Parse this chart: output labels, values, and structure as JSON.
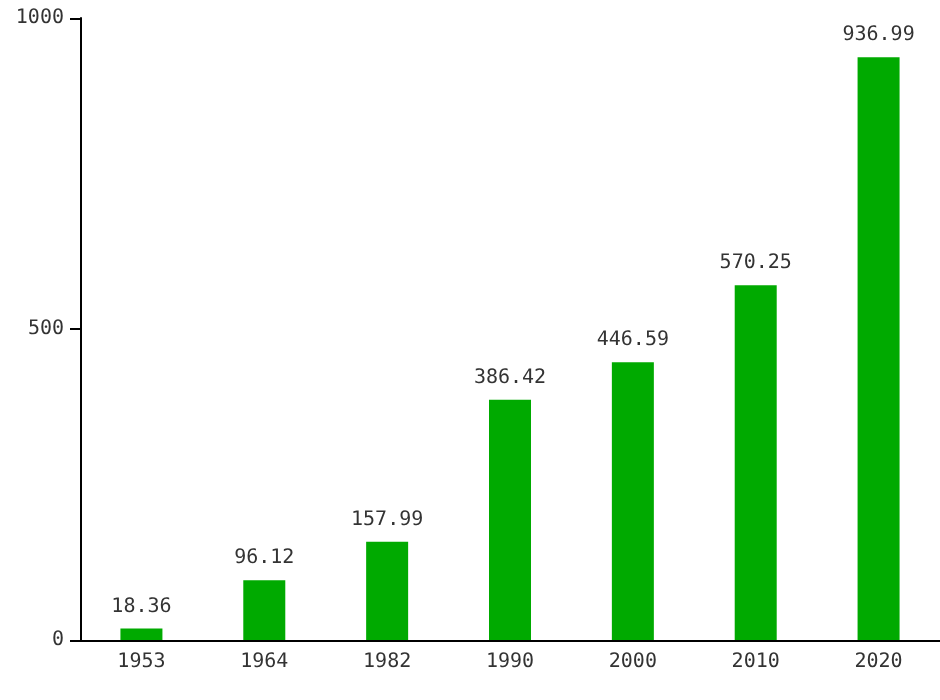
{
  "chart_data": {
    "type": "bar",
    "categories": [
      "1953",
      "1964",
      "1982",
      "1990",
      "2000",
      "2010",
      "2020"
    ],
    "values": [
      18.36,
      96.12,
      157.99,
      386.42,
      446.59,
      570.25,
      936.99
    ],
    "color": "#00aa00",
    "ylim": [
      0,
      1000
    ],
    "yticks": [
      0,
      500,
      1000
    ],
    "grid": false,
    "data_labels": true
  }
}
